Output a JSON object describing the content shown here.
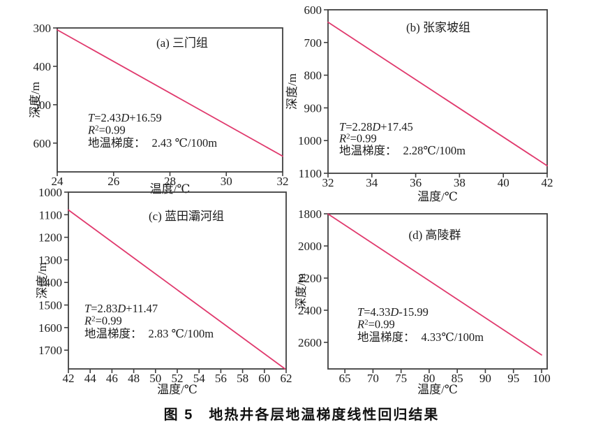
{
  "figure": {
    "caption": "图 5　地热井各层地温梯度线性回归结果"
  },
  "colors": {
    "line": "#e0396d",
    "frame": "#3f3f3f",
    "text": "#1c1c1c",
    "background": "#ffffff"
  },
  "chart_data": [
    {
      "id": "a",
      "type": "line",
      "title": "(a) 三门组",
      "xlabel": "温度/℃",
      "ylabel": "深度/m",
      "xlim": [
        24,
        32
      ],
      "xticks": [
        24,
        26,
        28,
        30,
        32
      ],
      "ylim": [
        300,
        675
      ],
      "yticks": [
        300,
        400,
        500,
        600
      ],
      "y_inverted": true,
      "grid": false,
      "line": {
        "x": [
          24,
          32
        ],
        "y": [
          305,
          634
        ]
      },
      "equation": "T=2.43D+16.59",
      "r_squared_text": "R²=0.99",
      "gradient_label": "地温梯度：",
      "gradient_value": "2.43 ℃/100m"
    },
    {
      "id": "b",
      "type": "line",
      "title": "(b) 张家坡组",
      "xlabel": "温度/℃",
      "ylabel": "深度/m",
      "xlim": [
        32,
        42
      ],
      "xticks": [
        32,
        34,
        36,
        38,
        40,
        42
      ],
      "ylim": [
        600,
        1100
      ],
      "yticks": [
        600,
        700,
        800,
        900,
        1000,
        1100
      ],
      "y_inverted": true,
      "grid": false,
      "line": {
        "x": [
          32,
          42
        ],
        "y": [
          638,
          1077
        ]
      },
      "equation": "T=2.28D+17.45",
      "r_squared_text": "R²=0.99",
      "gradient_label": "地温梯度：",
      "gradient_value": "2.28℃/100m"
    },
    {
      "id": "c",
      "type": "line",
      "title": "(c) 蓝田灞河组",
      "xlabel": "温度/℃",
      "ylabel": "深度/m",
      "xlim": [
        42,
        62
      ],
      "xticks": [
        42,
        44,
        46,
        48,
        50,
        52,
        54,
        56,
        58,
        60,
        62
      ],
      "ylim": [
        1000,
        1783
      ],
      "yticks": [
        1000,
        1100,
        1200,
        1300,
        1400,
        1500,
        1600,
        1700
      ],
      "y_inverted": true,
      "grid": false,
      "line": {
        "x": [
          42,
          61.9
        ],
        "y": [
          1079,
          1783
        ]
      },
      "equation": "T=2.83D+11.47",
      "r_squared_text": "R²=0.99",
      "gradient_label": "地温梯度：",
      "gradient_value": "2.83 ℃/100m"
    },
    {
      "id": "d",
      "type": "line",
      "title": "(d) 高陵群",
      "xlabel": "温度/℃",
      "ylabel": "深度/m",
      "xlim": [
        62,
        101
      ],
      "xticks": [
        65,
        70,
        75,
        80,
        85,
        90,
        95,
        100
      ],
      "ylim": [
        1800,
        2765
      ],
      "yticks": [
        1800,
        2000,
        2200,
        2400,
        2600
      ],
      "y_inverted": true,
      "grid": false,
      "line": {
        "x": [
          62,
          100
        ],
        "y": [
          1801,
          2678
        ]
      },
      "equation": "T=4.33D-15.99",
      "r_squared_text": "R²=0.99",
      "gradient_label": "地温梯度：",
      "gradient_value": "4.33℃/100m"
    }
  ]
}
